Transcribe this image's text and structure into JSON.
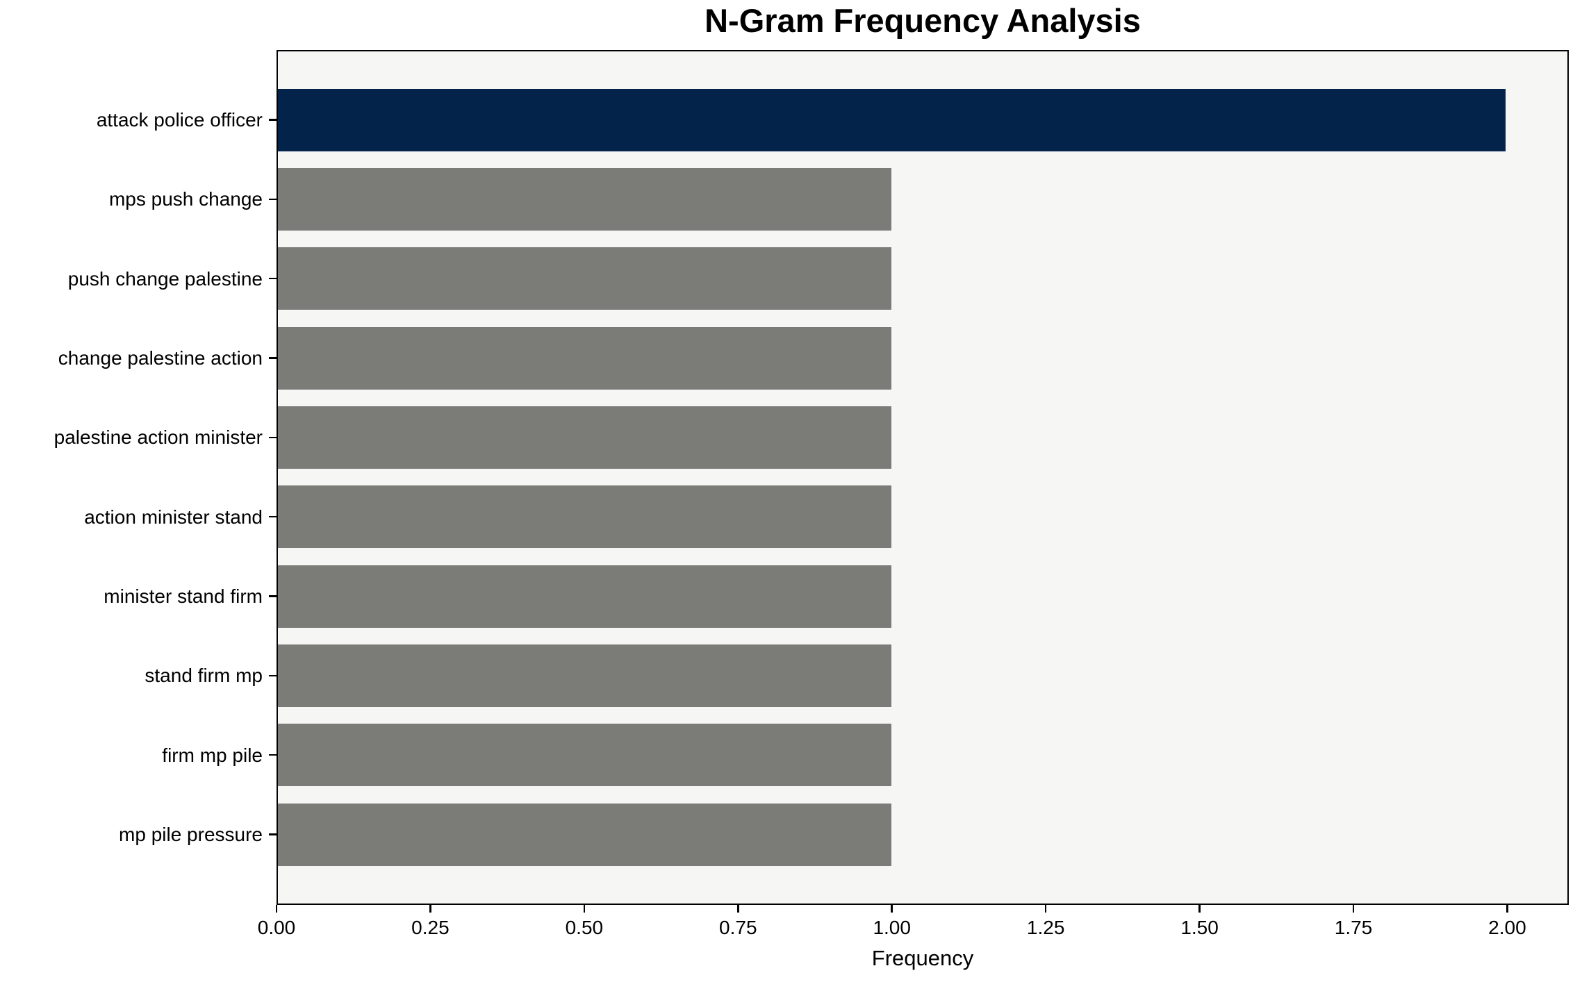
{
  "chart_data": {
    "type": "bar",
    "orientation": "horizontal",
    "title": "N-Gram Frequency Analysis",
    "xlabel": "Frequency",
    "ylabel": "",
    "categories": [
      "attack police officer",
      "mps push change",
      "push change palestine",
      "change palestine action",
      "palestine action minister",
      "action minister stand",
      "minister stand firm",
      "stand firm mp",
      "firm mp pile",
      "mp pile pressure"
    ],
    "values": [
      2,
      1,
      1,
      1,
      1,
      1,
      1,
      1,
      1,
      1
    ],
    "xlim": [
      0,
      2.1
    ],
    "xticks": [
      0,
      0.25,
      0.5,
      0.75,
      1.0,
      1.25,
      1.5,
      1.75,
      2.0
    ],
    "xtick_labels": [
      "0.00",
      "0.25",
      "0.50",
      "0.75",
      "1.00",
      "1.25",
      "1.50",
      "1.75",
      "2.00"
    ],
    "grid": false,
    "legend": null,
    "colors": {
      "highlight_bar": "#03234b",
      "default_bar": "#7b7b78",
      "bar_colors": [
        "#03234b",
        "#7b7b78",
        "#7b7b78",
        "#7b7b78",
        "#7b7b78",
        "#7b7b78",
        "#7b7b78",
        "#7b7b78",
        "#7b7b78",
        "#7b7b78"
      ],
      "plot_background": "#f6f6f5",
      "figure_background": "#ffffff",
      "axis_text": "#000000",
      "spine": "#000000"
    }
  }
}
